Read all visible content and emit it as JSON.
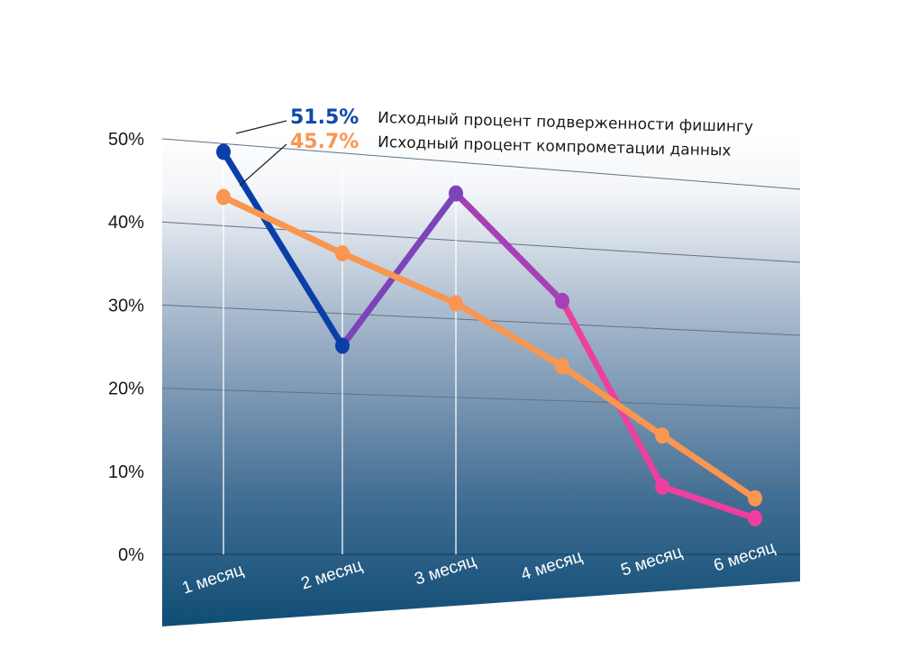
{
  "chart_data": {
    "type": "line",
    "categories": [
      "1 месяц",
      "2 месяц",
      "3 месяц",
      "4 месяц",
      "5 месяц",
      "6 месяц"
    ],
    "y_ticks": [
      "0%",
      "10%",
      "20%",
      "30%",
      "40%",
      "50%"
    ],
    "ylim": [
      0,
      50
    ],
    "grid": true,
    "series": [
      {
        "values": [
          49,
          26,
          46,
          33,
          9,
          4.9
        ],
        "colors": [
          "#0a3fa8",
          "#7c44b8",
          "#a441b4",
          "#ee3f9e",
          "#ee3f9e"
        ]
      },
      {
        "values": [
          43.5,
          37.5,
          32,
          24.5,
          15.8,
          7.6
        ],
        "colors": [
          "#f99650"
        ]
      }
    ],
    "annotations": [
      {
        "value": "51.5%",
        "text": "Исходный процент подверженности фишингу",
        "color": "#0f4aa8"
      },
      {
        "value": "45.7%",
        "text": "Исходный процент компрометации данных",
        "color": "#f99650"
      }
    ]
  }
}
